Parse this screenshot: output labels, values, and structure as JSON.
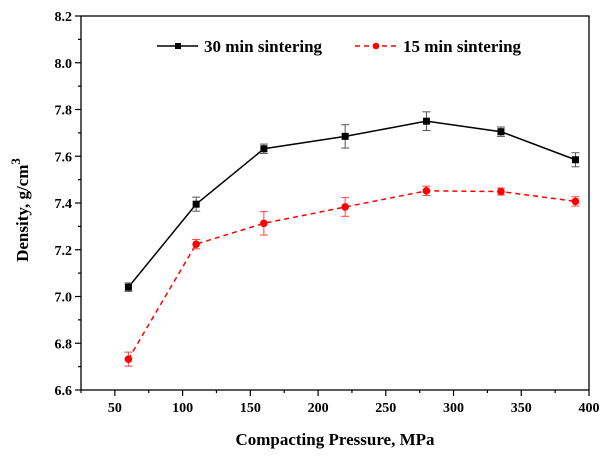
{
  "chart_data": {
    "type": "line",
    "title": "",
    "xlabel": "Compacting Pressure, MPa",
    "ylabel": "Density, g/cm",
    "ylabel_superscript": "3",
    "xlim": [
      25,
      400
    ],
    "ylim": [
      6.6,
      8.2
    ],
    "xticks": [
      50,
      100,
      150,
      200,
      250,
      300,
      350,
      400
    ],
    "yticks": [
      "6.6",
      "6.8",
      "7.0",
      "7.2",
      "7.4",
      "7.6",
      "7.8",
      "8.0",
      "8.2"
    ],
    "grid": false,
    "legend_placement": "top",
    "x": [
      60,
      110,
      160,
      220,
      280,
      335,
      390
    ],
    "series": [
      {
        "name": "30 min sintering",
        "color": "#000000",
        "marker": "square",
        "line": "solid",
        "values": [
          7.04,
          7.395,
          7.632,
          7.685,
          7.75,
          7.705,
          7.585
        ],
        "errors": [
          0.018,
          0.03,
          0.02,
          0.05,
          0.04,
          0.02,
          0.03
        ]
      },
      {
        "name": "15 min sintering",
        "color": "#ff0000",
        "marker": "circle",
        "line": "dashed",
        "values": [
          6.732,
          7.224,
          7.313,
          7.383,
          7.452,
          7.449,
          7.407
        ],
        "errors": [
          0.03,
          0.02,
          0.05,
          0.04,
          0.02,
          0.015,
          0.02
        ]
      }
    ]
  }
}
